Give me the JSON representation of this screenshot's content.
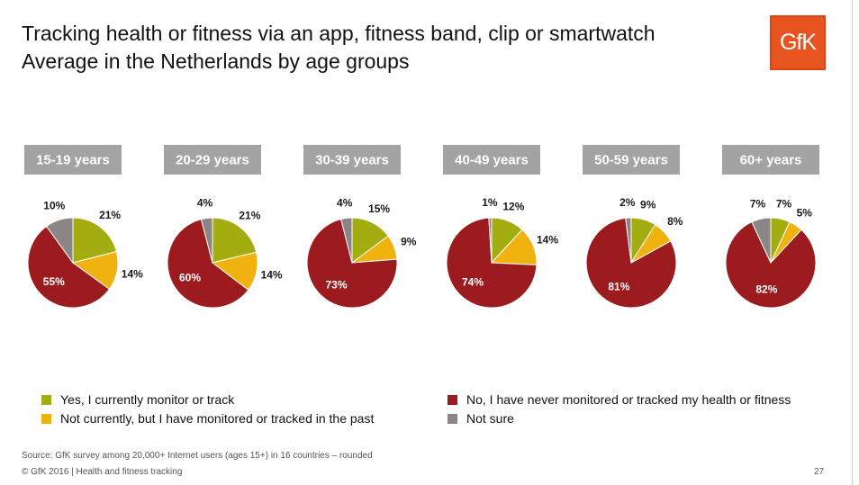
{
  "title_line1": "Tracking health or fitness via an app, fitness band, clip or smartwatch",
  "title_line2": "Average in the Netherlands by age groups",
  "logo_text": "GfK",
  "colors": {
    "yes": "#a4ad0f",
    "past": "#f0b20f",
    "never": "#9b1b1f",
    "not_sure": "#8c8585"
  },
  "legend": [
    {
      "key": "yes",
      "label": "Yes, I currently monitor or track"
    },
    {
      "key": "past",
      "label": "Not currently, but I have monitored or tracked in the past"
    },
    {
      "key": "never",
      "label": "No, I have never monitored or tracked my health or fitness"
    },
    {
      "key": "not_sure",
      "label": "Not sure"
    }
  ],
  "chart_data": {
    "type": "pie",
    "series_keys": [
      "yes",
      "past",
      "never",
      "not_sure"
    ],
    "series_names": [
      "Yes, I currently monitor or track",
      "Not currently, but I have monitored or tracked in the past",
      "No, I have never monitored or tracked my health or fitness",
      "Not sure"
    ],
    "groups": [
      {
        "label": "15-19 years",
        "values": [
          21,
          14,
          55,
          10
        ],
        "value_labels": [
          "21%",
          "14%",
          "55%",
          "10%"
        ]
      },
      {
        "label": "20-29 years",
        "values": [
          21,
          14,
          60,
          4
        ],
        "value_labels": [
          "21%",
          "14%",
          "60%",
          "4%"
        ]
      },
      {
        "label": "30-39 years",
        "values": [
          15,
          9,
          73,
          4
        ],
        "value_labels": [
          "15%",
          "9%",
          "73%",
          "4%"
        ]
      },
      {
        "label": "40-49 years",
        "values": [
          12,
          14,
          74,
          1
        ],
        "value_labels": [
          "12%",
          "14%",
          "74%",
          "1%"
        ]
      },
      {
        "label": "50-59 years",
        "values": [
          9,
          8,
          81,
          2
        ],
        "value_labels": [
          "9%",
          "8%",
          "81%",
          "2%"
        ]
      },
      {
        "label": "60+ years",
        "values": [
          7,
          5,
          82,
          7
        ],
        "value_labels": [
          "7%",
          "5%",
          "82%",
          "7%"
        ]
      }
    ]
  },
  "source": "Source: GfK survey among 20,000+ Internet users (ages 15+) in 16 countries – rounded",
  "copyright": "© GfK 2016 | Health and fitness tracking",
  "page_number": "27"
}
